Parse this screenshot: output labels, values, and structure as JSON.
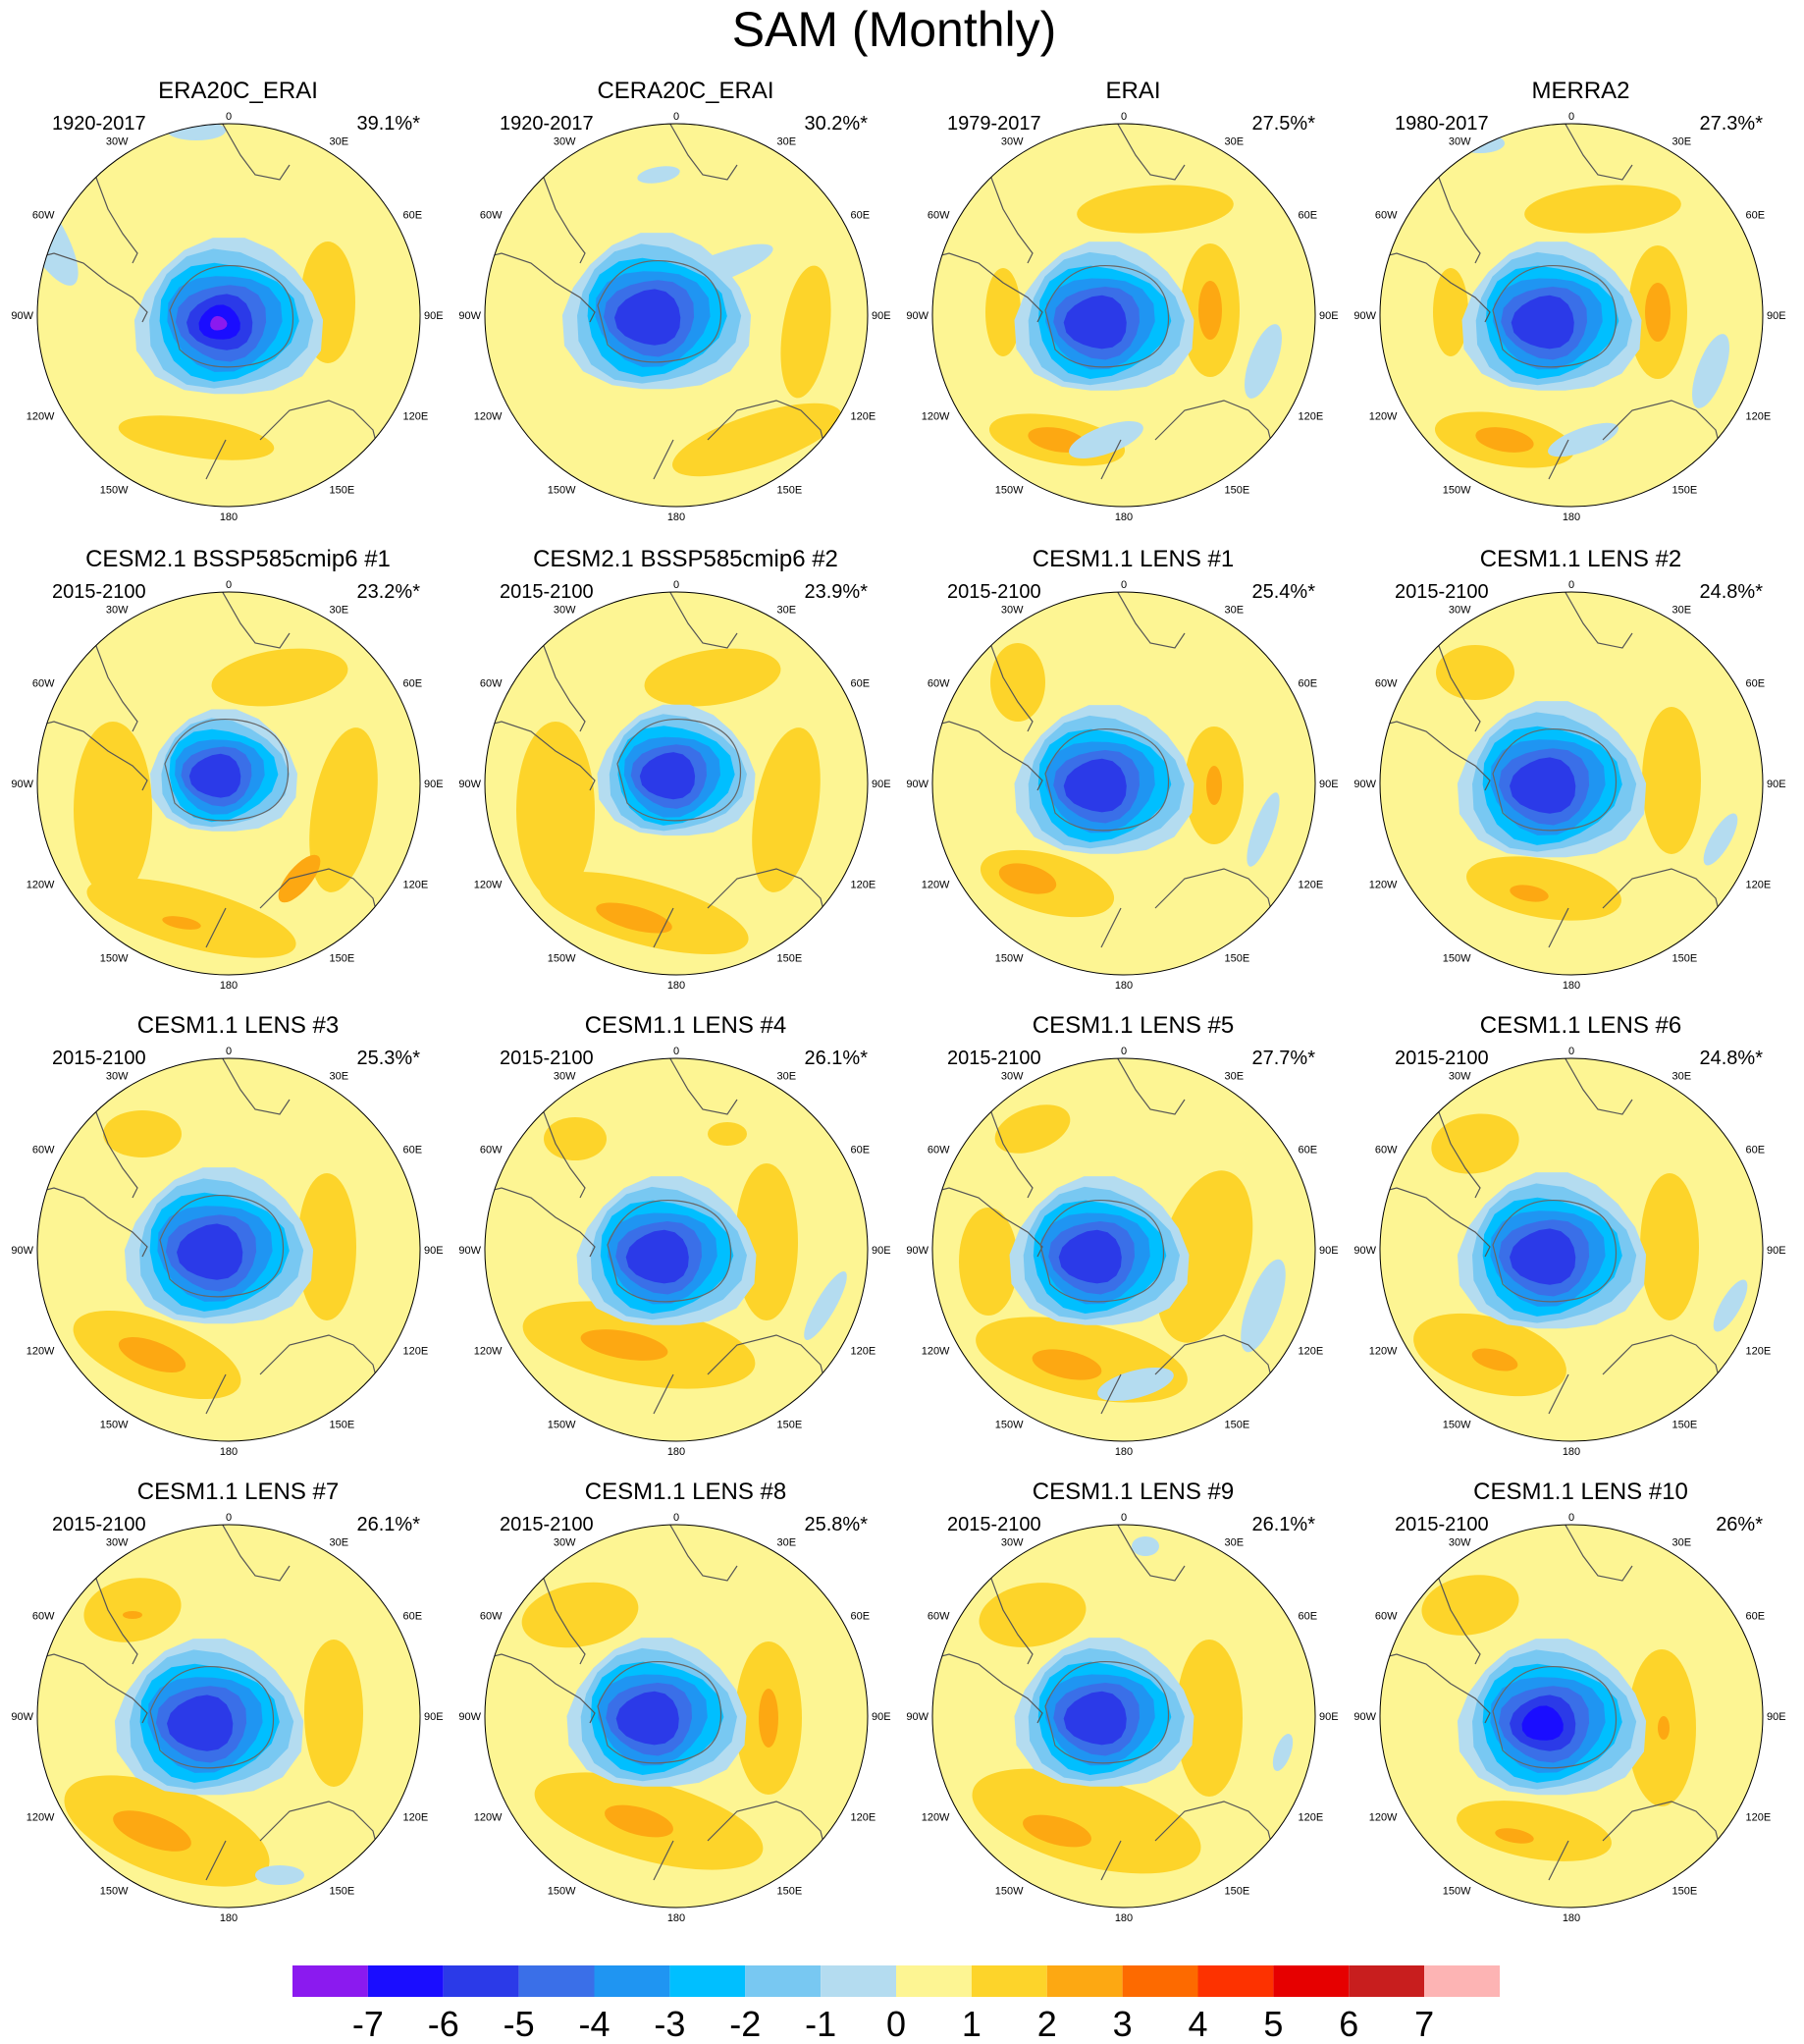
{
  "title": "SAM (Monthly)",
  "panels": [
    {
      "title": "ERA20C_ERAI",
      "period": "1920-2017",
      "pct": "39.1%*"
    },
    {
      "title": "CERA20C_ERAI",
      "period": "1920-2017",
      "pct": "30.2%*"
    },
    {
      "title": "ERAI",
      "period": "1979-2017",
      "pct": "27.5%*"
    },
    {
      "title": "MERRA2",
      "period": "1980-2017",
      "pct": "27.3%*"
    },
    {
      "title": "CESM2.1 BSSP585cmip6 #1",
      "period": "2015-2100",
      "pct": "23.2%*"
    },
    {
      "title": "CESM2.1 BSSP585cmip6 #2",
      "period": "2015-2100",
      "pct": "23.9%*"
    },
    {
      "title": "CESM1.1 LENS #1",
      "period": "2015-2100",
      "pct": "25.4%*"
    },
    {
      "title": "CESM1.1 LENS #2",
      "period": "2015-2100",
      "pct": "24.8%*"
    },
    {
      "title": "CESM1.1 LENS #3",
      "period": "2015-2100",
      "pct": "25.3%*"
    },
    {
      "title": "CESM1.1 LENS #4",
      "period": "2015-2100",
      "pct": "26.1%*"
    },
    {
      "title": "CESM1.1 LENS #5",
      "period": "2015-2100",
      "pct": "27.7%*"
    },
    {
      "title": "CESM1.1 LENS #6",
      "period": "2015-2100",
      "pct": "24.8%*"
    },
    {
      "title": "CESM1.1 LENS #7",
      "period": "2015-2100",
      "pct": "26.1%*"
    },
    {
      "title": "CESM1.1 LENS #8",
      "period": "2015-2100",
      "pct": "25.8%*"
    },
    {
      "title": "CESM1.1 LENS #9",
      "period": "2015-2100",
      "pct": "26.1%*"
    },
    {
      "title": "CESM1.1 LENS #10",
      "period": "2015-2100",
      "pct": "26%*"
    }
  ],
  "lon_labels": [
    "0",
    "30E",
    "60E",
    "90E",
    "120E",
    "150E",
    "180",
    "150W",
    "120W",
    "90W",
    "60W",
    "30W"
  ],
  "colorbar": {
    "labels": [
      "-7",
      "-6",
      "-5",
      "-4",
      "-3",
      "-2",
      "-1",
      "0",
      "1",
      "2",
      "3",
      "4",
      "5",
      "6",
      "7"
    ],
    "colors": [
      "#8b1aef",
      "#1a0dff",
      "#2b3ae8",
      "#3a6fe8",
      "#1f95f2",
      "#00bfff",
      "#78c8f2",
      "#b4dcf0",
      "#fdf593",
      "#fdd42a",
      "#fda812",
      "#fd6a00",
      "#fd3200",
      "#e60000",
      "#c81e1e",
      "#fdb4b4"
    ]
  }
}
